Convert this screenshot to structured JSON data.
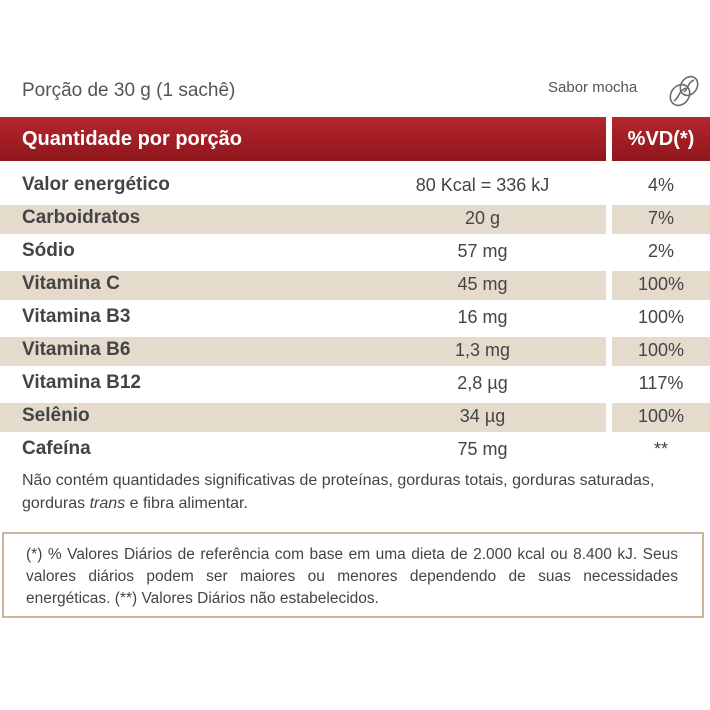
{
  "serving": "Porção de 30 g (1 sachê)",
  "flavor": "Sabor mocha",
  "icon": "coffee-bean-icon",
  "colors": {
    "header": "#a11d24",
    "shade": "#e4dbcc",
    "border": "#c9b99a"
  },
  "header": {
    "title": "Quantidade por porção",
    "vd": "%VD(*)"
  },
  "rows": [
    {
      "nutrient": "Valor energético",
      "amount": "80 Kcal = 336 kJ",
      "vd": "4%"
    },
    {
      "nutrient": "Carboidratos",
      "amount": "20 g",
      "vd": "7%"
    },
    {
      "nutrient": "Sódio",
      "amount": "57 mg",
      "vd": "2%"
    },
    {
      "nutrient": "Vitamina C",
      "amount": "45 mg",
      "vd": "100%"
    },
    {
      "nutrient": "Vitamina B3",
      "amount": "16 mg",
      "vd": "100%"
    },
    {
      "nutrient": "Vitamina B6",
      "amount": "1,3 mg",
      "vd": "100%"
    },
    {
      "nutrient": "Vitamina B12",
      "amount": "2,8 µg",
      "vd": "117%"
    },
    {
      "nutrient": "Selênio",
      "amount": "34 µg",
      "vd": "100%"
    },
    {
      "nutrient": "Cafeína",
      "amount": "75 mg",
      "vd": "**"
    }
  ],
  "note": {
    "before": "Não contém quantidades significativas de proteínas, gorduras totais, gorduras saturadas, gorduras ",
    "italic": "trans",
    "after": " e fibra alimentar."
  },
  "footnote": "(*) % Valores Diários de referência com base em uma dieta de 2.000 kcal ou 8.400 kJ. Seus valores diários podem ser maiores ou menores dependendo de suas necessidades energéticas. (**) Valores Diários não estabelecidos."
}
